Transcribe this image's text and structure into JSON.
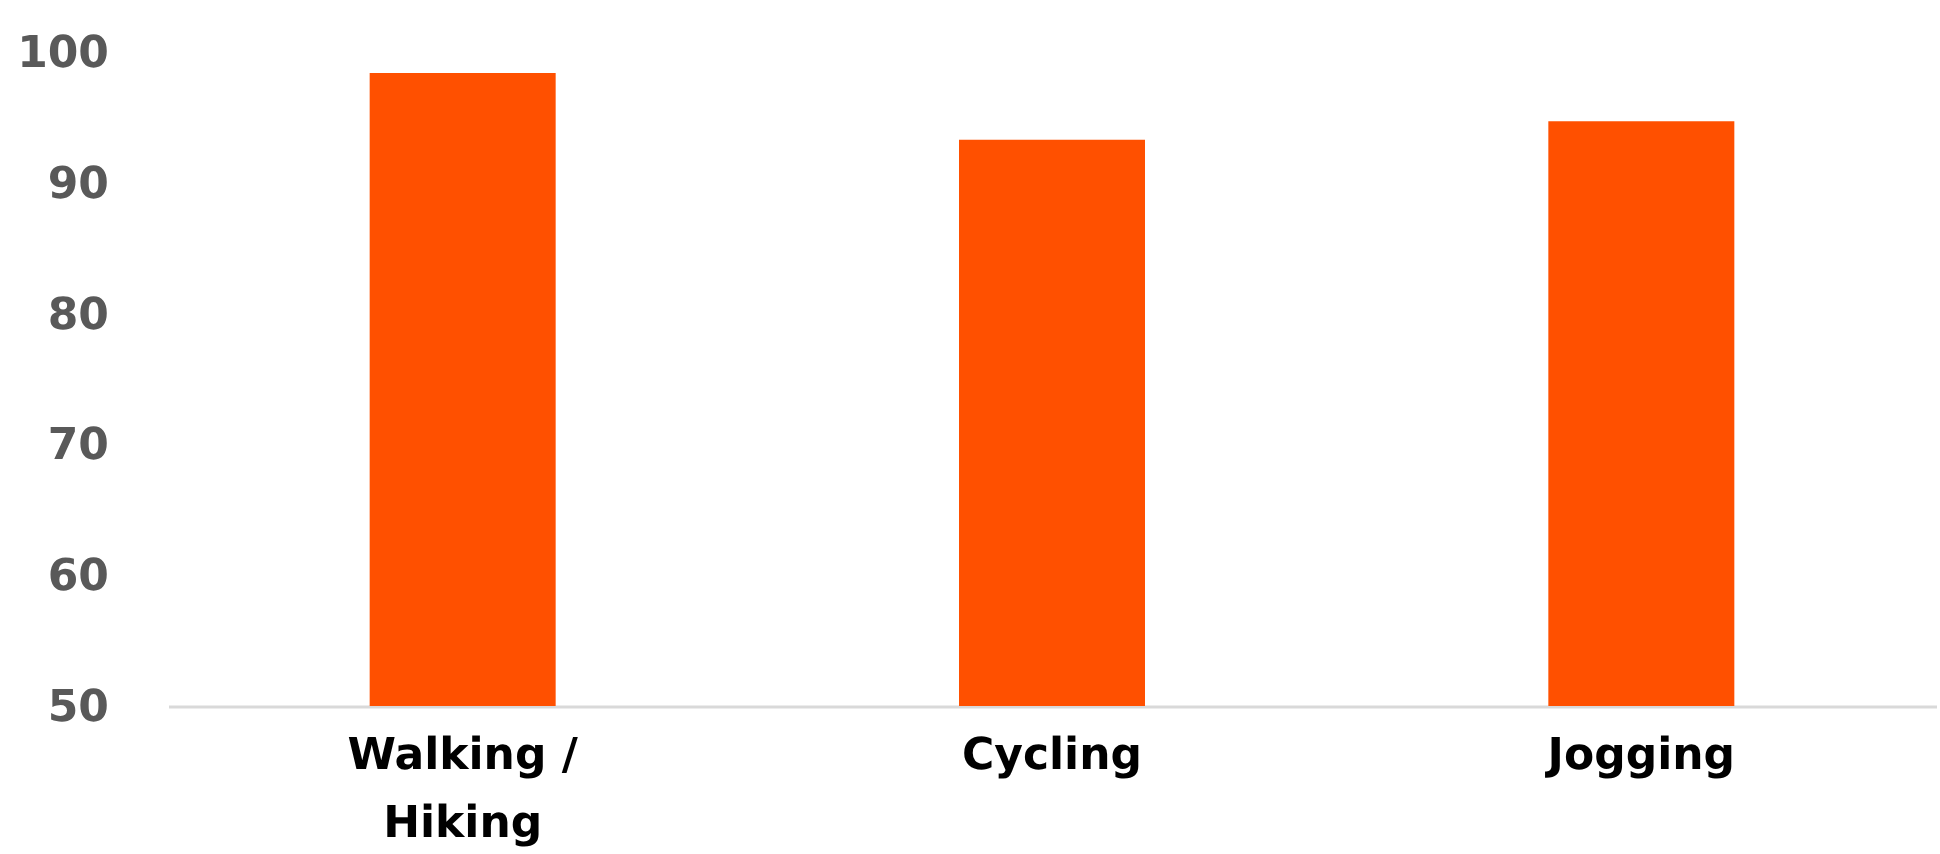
{
  "chart_data": {
    "type": "bar",
    "categories": [
      "Walking / Hiking",
      "Cycling",
      "Jogging"
    ],
    "values": [
      98.4,
      93.3,
      94.7
    ],
    "color": "#ff5000",
    "ylim": [
      50,
      100
    ],
    "yticks": [
      50,
      60,
      70,
      80,
      90,
      100
    ],
    "grid": false
  }
}
